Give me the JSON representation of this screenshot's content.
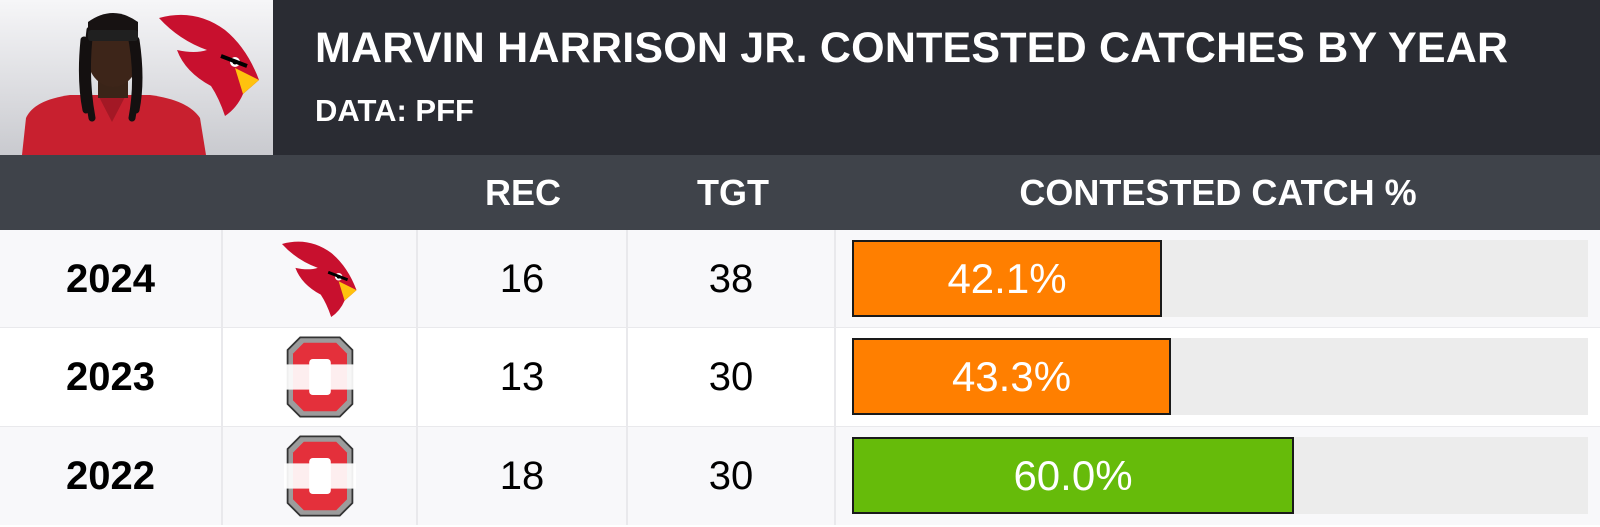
{
  "header": {
    "title": "MARVIN HARRISON JR. CONTESTED CATCHES BY YEAR",
    "subtitle": "DATA: PFF",
    "photo_icon": "player-photo",
    "team_logo_icon": "cardinals-logo-icon"
  },
  "columns": {
    "rec": "REC",
    "tgt": "TGT",
    "pct": "CONTESTED CATCH %"
  },
  "colors": {
    "header_bg": "#2a2c33",
    "colhead_bg": "#3f434a",
    "orange": "#ff7f00",
    "green": "#66bb0a",
    "track": "#ececec"
  },
  "chart_data": {
    "type": "bar",
    "title": "MARVIN HARRISON JR. CONTESTED CATCHES BY YEAR",
    "subtitle": "DATA: PFF",
    "xlim": [
      0,
      100
    ],
    "rows": [
      {
        "year": "2024",
        "team_icon": "cardinals-logo-icon",
        "rec": 16,
        "tgt": 38,
        "pct": 42.1,
        "label": "42.1%",
        "color": "#ff7f00",
        "bg": "#f8f8fa"
      },
      {
        "year": "2023",
        "team_icon": "ohio-state-logo-icon",
        "rec": 13,
        "tgt": 30,
        "pct": 43.3,
        "label": "43.3%",
        "color": "#ff7f00",
        "bg": "#ffffff"
      },
      {
        "year": "2022",
        "team_icon": "ohio-state-logo-icon",
        "rec": 18,
        "tgt": 30,
        "pct": 60.0,
        "label": "60.0%",
        "color": "#66bb0a",
        "bg": "#f8f8fa"
      }
    ]
  }
}
